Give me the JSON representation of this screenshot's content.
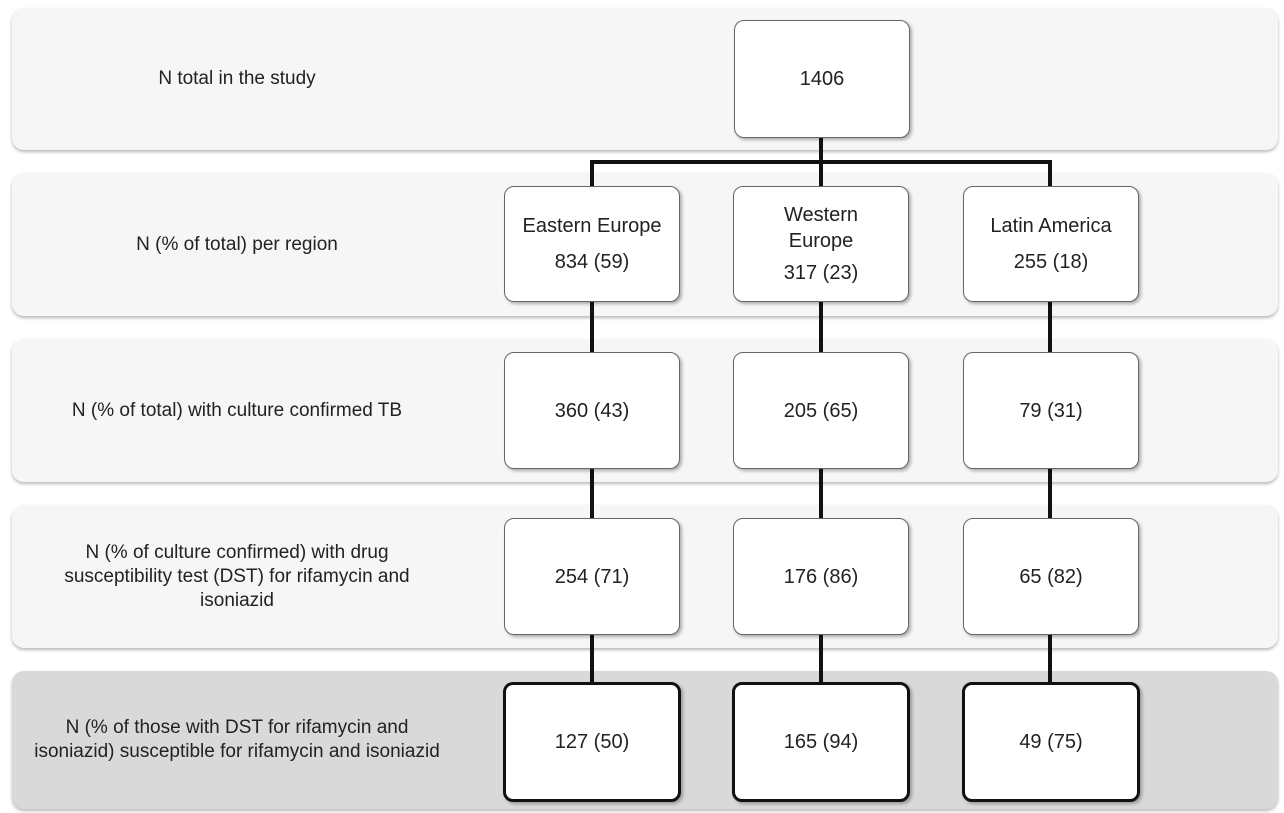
{
  "rows": [
    {
      "label": "N total in the study"
    },
    {
      "label": "N (% of total) per region"
    },
    {
      "label": "N (% of total) with culture confirmed TB"
    },
    {
      "label": "N (% of culture confirmed) with drug susceptibility test (DST) for rifamycin and isoniazid"
    },
    {
      "label": "N (% of those with DST for rifamycin and isoniazid) susceptible  for rifamycin and isoniazid"
    }
  ],
  "total": {
    "value": "1406"
  },
  "regions": [
    {
      "name": "Eastern Europe",
      "per_region": "834 (59)",
      "culture_confirmed": "360 (43)",
      "dst": "254 (71)",
      "susceptible": "127 (50)"
    },
    {
      "name": "Western Europe",
      "per_region": "317 (23)",
      "culture_confirmed": "205 (65)",
      "dst": "176 (86)",
      "susceptible": "165 (94)"
    },
    {
      "name": "Latin America",
      "per_region": "255 (18)",
      "culture_confirmed": "79 (31)",
      "dst": "65 (82)",
      "susceptible": "49 (75)"
    }
  ]
}
